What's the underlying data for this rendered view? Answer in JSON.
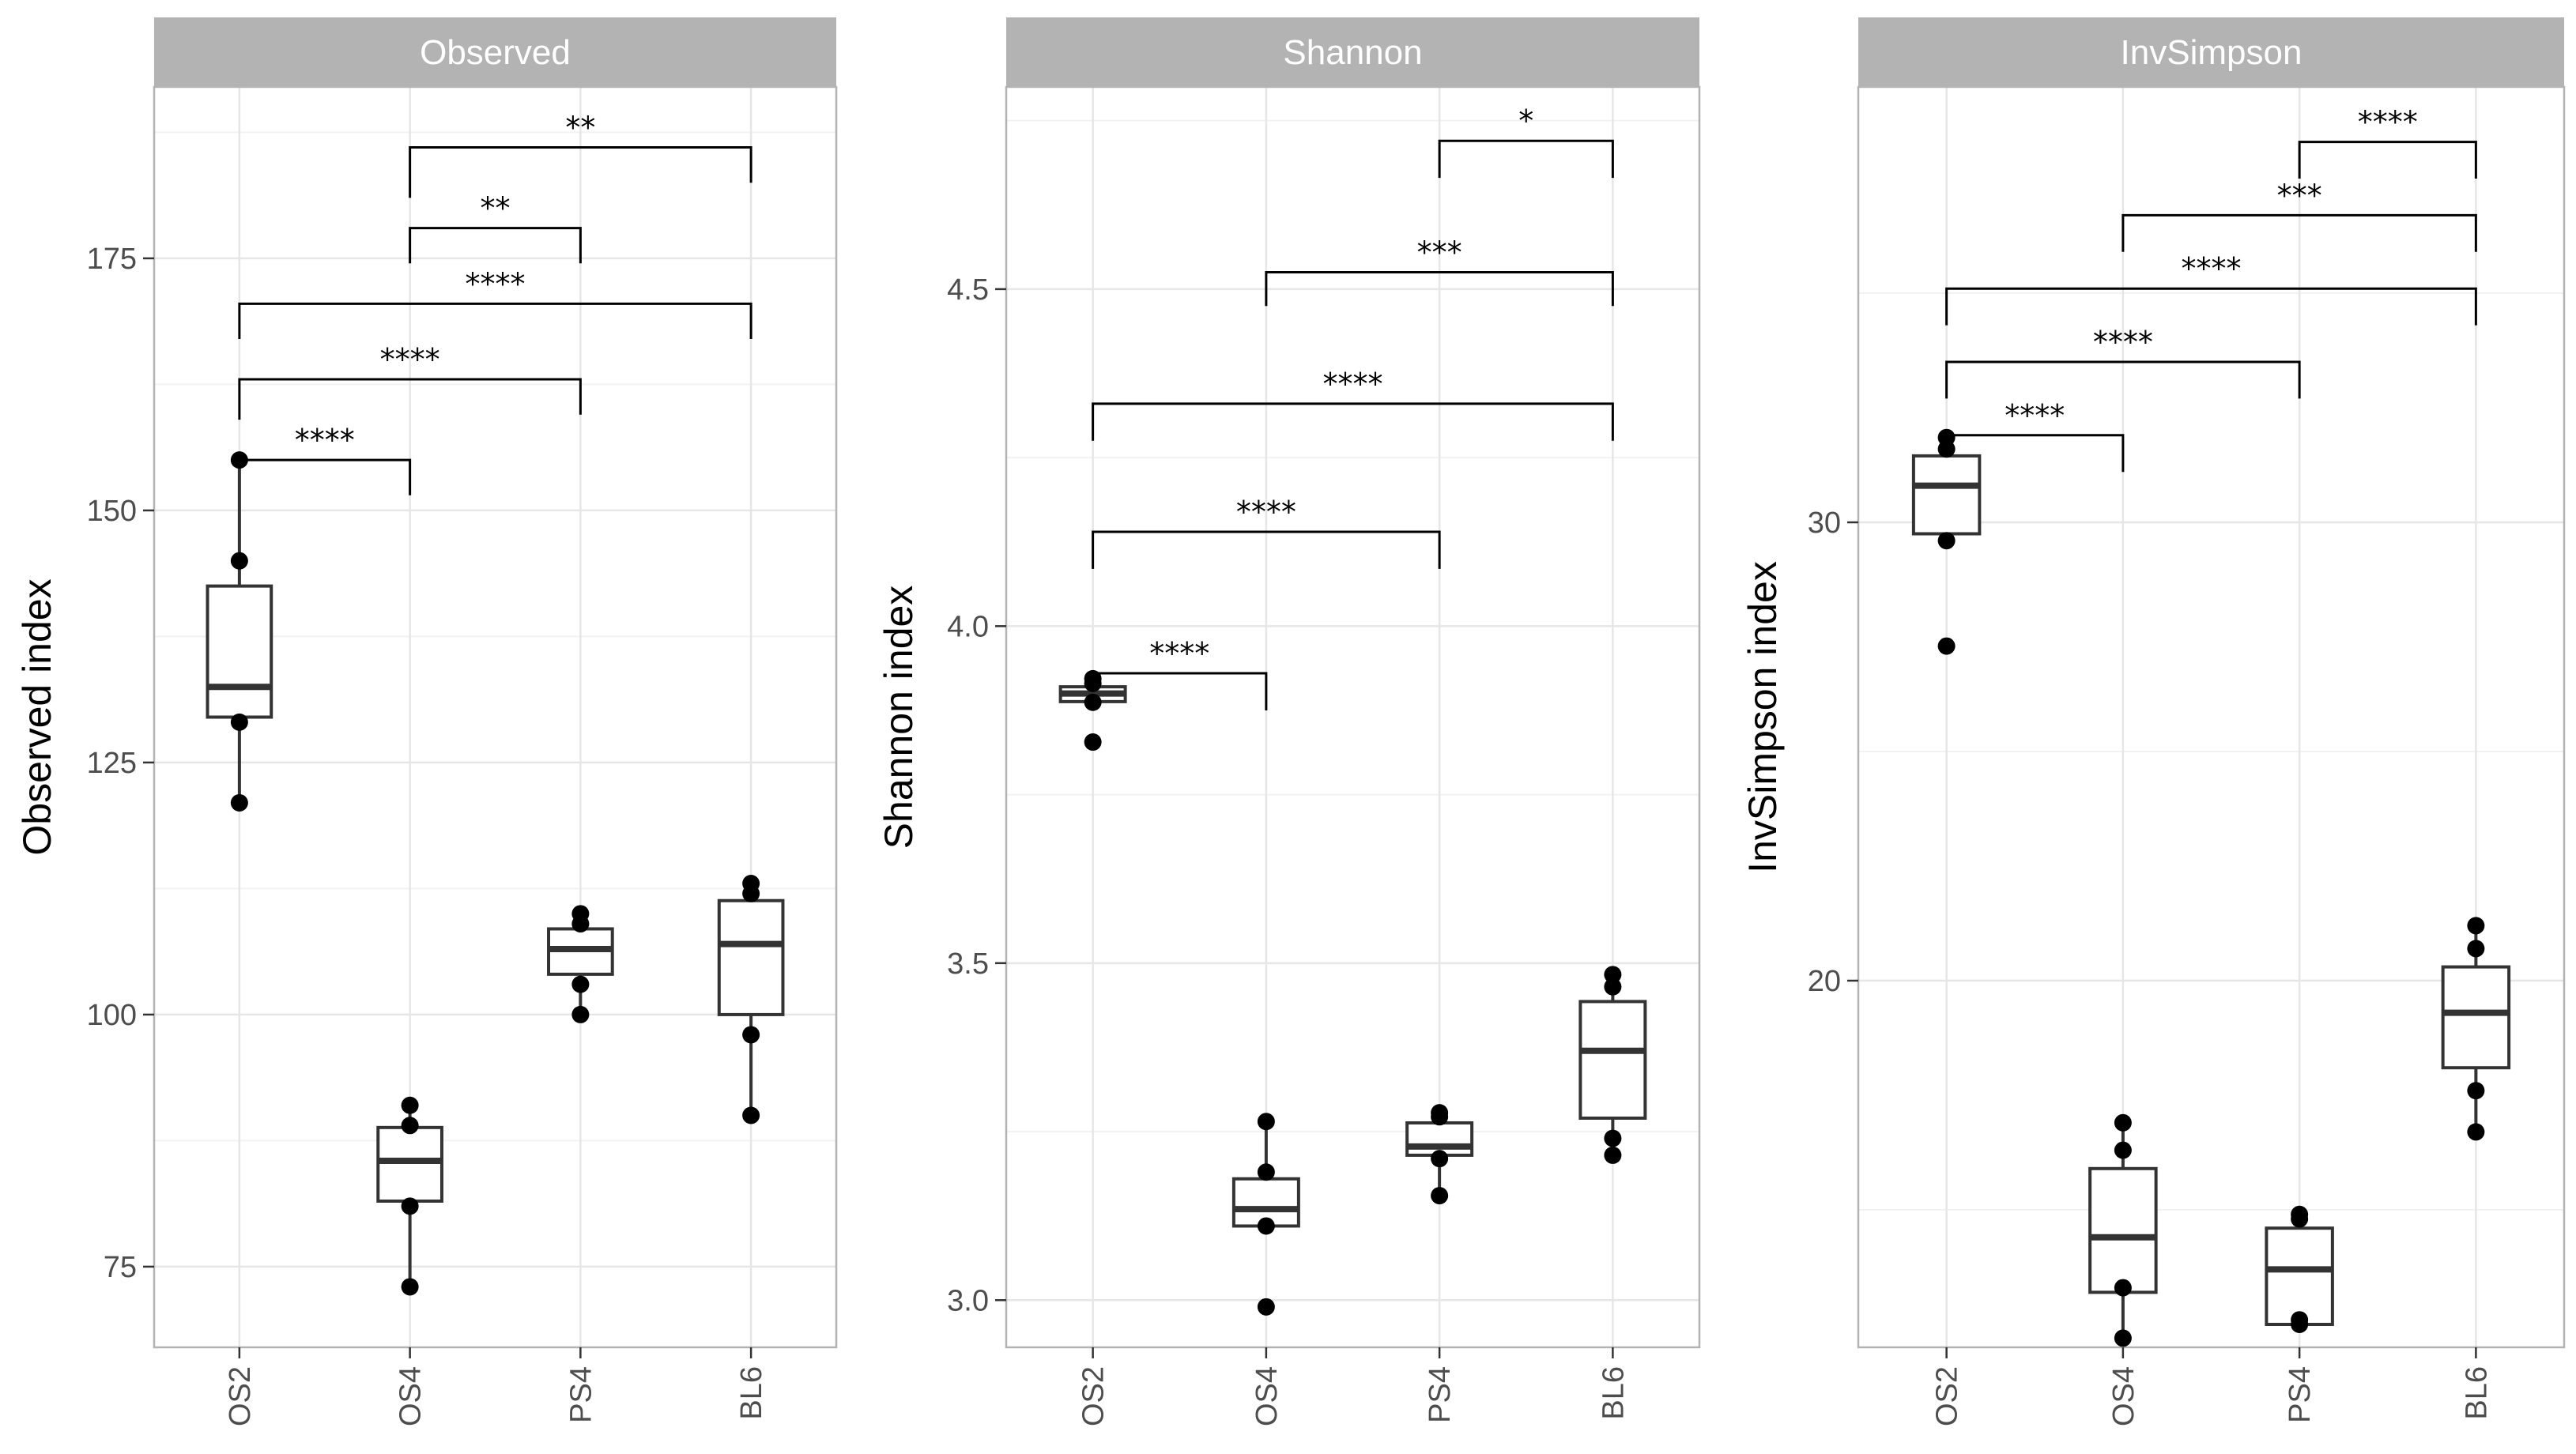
{
  "chart_data": [
    {
      "type": "box",
      "title": "Observed",
      "ylabel": "Observed index",
      "categories": [
        "OS2",
        "OS4",
        "PS4",
        "BL6"
      ],
      "ylim": [
        67,
        192
      ],
      "yticks": [
        75,
        100,
        125,
        150,
        175
      ],
      "boxes": [
        {
          "category": "OS2",
          "q1": 129.5,
          "median": 132.5,
          "q3": 142.5,
          "whisker_low": 121,
          "whisker_high": 155
        },
        {
          "category": "OS4",
          "q1": 81.5,
          "median": 85.5,
          "q3": 88.8,
          "whisker_low": 73,
          "whisker_high": 91
        },
        {
          "category": "PS4",
          "q1": 104,
          "median": 106.5,
          "q3": 108.5,
          "whisker_low": 100,
          "whisker_high": 110
        },
        {
          "category": "BL6",
          "q1": 100,
          "median": 107,
          "q3": 111.3,
          "whisker_low": 90,
          "whisker_high": 113
        }
      ],
      "points": [
        {
          "category": "OS2",
          "values": [
            155,
            145,
            129,
            121
          ]
        },
        {
          "category": "OS4",
          "values": [
            91,
            89,
            81,
            73
          ]
        },
        {
          "category": "PS4",
          "values": [
            110,
            109,
            103,
            100
          ]
        },
        {
          "category": "BL6",
          "values": [
            113,
            112,
            98,
            90
          ]
        }
      ],
      "comparisons": [
        {
          "from": "OS4",
          "to": "BL6",
          "label": "**",
          "y": 186,
          "left_end": 181,
          "right_end": 182.5
        },
        {
          "from": "OS4",
          "to": "PS4",
          "label": "**",
          "y": 178,
          "left_end": 174.5,
          "right_end": 174.5
        },
        {
          "from": "OS2",
          "to": "BL6",
          "label": "****",
          "y": 170.5,
          "left_end": 167,
          "right_end": 167
        },
        {
          "from": "OS2",
          "to": "PS4",
          "label": "****",
          "y": 163,
          "left_end": 159,
          "right_end": 159.5
        },
        {
          "from": "OS2",
          "to": "OS4",
          "label": "****",
          "y": 155,
          "left_end": 155,
          "right_end": 151.5
        }
      ]
    },
    {
      "type": "box",
      "title": "Shannon",
      "ylabel": "Shannon index",
      "categories": [
        "OS2",
        "OS4",
        "PS4",
        "BL6"
      ],
      "ylim": [
        2.93,
        4.8
      ],
      "yticks": [
        3.0,
        3.5,
        4.0,
        4.5
      ],
      "ytick_labels": [
        "3.0",
        "3.5",
        "4.0",
        "4.5"
      ],
      "boxes": [
        {
          "category": "OS2",
          "q1": 3.888,
          "median": 3.9,
          "q3": 3.91,
          "whisker_low": 3.888,
          "whisker_high": 3.92
        },
        {
          "category": "OS4",
          "q1": 3.11,
          "median": 3.135,
          "q3": 3.18,
          "whisker_low": 3.11,
          "whisker_high": 3.265
        },
        {
          "category": "PS4",
          "q1": 3.215,
          "median": 3.228,
          "q3": 3.263,
          "whisker_low": 3.155,
          "whisker_high": 3.275
        },
        {
          "category": "BL6",
          "q1": 3.27,
          "median": 3.37,
          "q3": 3.443,
          "whisker_low": 3.215,
          "whisker_high": 3.483
        }
      ],
      "points": [
        {
          "category": "OS2",
          "values": [
            3.922,
            3.915,
            3.887,
            3.828
          ]
        },
        {
          "category": "OS4",
          "values": [
            3.265,
            3.19,
            3.11,
            2.99
          ]
        },
        {
          "category": "PS4",
          "values": [
            3.278,
            3.272,
            3.21,
            3.155
          ]
        },
        {
          "category": "BL6",
          "values": [
            3.483,
            3.465,
            3.24,
            3.215
          ]
        }
      ],
      "comparisons": [
        {
          "from": "PS4",
          "to": "BL6",
          "label": "*",
          "y": 4.72,
          "left_end": 4.665,
          "right_end": 4.665
        },
        {
          "from": "OS4",
          "to": "BL6",
          "label": "***",
          "y": 4.525,
          "left_end": 4.475,
          "right_end": 4.475
        },
        {
          "from": "OS2",
          "to": "BL6",
          "label": "****",
          "y": 4.33,
          "left_end": 4.275,
          "right_end": 4.275
        },
        {
          "from": "OS2",
          "to": "PS4",
          "label": "****",
          "y": 4.14,
          "left_end": 4.085,
          "right_end": 4.085
        },
        {
          "from": "OS2",
          "to": "OS4",
          "label": "****",
          "y": 3.93,
          "left_end": 3.93,
          "right_end": 3.875
        }
      ]
    },
    {
      "type": "box",
      "title": "InvSimpson",
      "ylabel": "InvSimpson index",
      "categories": [
        "OS2",
        "OS4",
        "PS4",
        "BL6"
      ],
      "ylim": [
        12,
        39.5
      ],
      "yticks": [
        20,
        30
      ],
      "boxes": [
        {
          "category": "OS2",
          "q1": 29.75,
          "median": 30.8,
          "q3": 31.45,
          "whisker_low": 29.6,
          "whisker_high": 31.85
        },
        {
          "category": "OS4",
          "q1": 13.2,
          "median": 14.4,
          "q3": 15.9,
          "whisker_low": 12.2,
          "whisker_high": 16.9
        },
        {
          "category": "PS4",
          "q1": 12.5,
          "median": 13.7,
          "q3": 14.6,
          "whisker_low": 12.5,
          "whisker_high": 14.9
        },
        {
          "category": "BL6",
          "q1": 18.1,
          "median": 19.3,
          "q3": 20.3,
          "whisker_low": 16.7,
          "whisker_high": 21.2
        }
      ],
      "points": [
        {
          "category": "OS2",
          "values": [
            31.85,
            31.6,
            29.6,
            27.3
          ]
        },
        {
          "category": "OS4",
          "values": [
            16.9,
            16.3,
            13.3,
            12.2
          ]
        },
        {
          "category": "PS4",
          "values": [
            14.9,
            14.8,
            12.6,
            12.5
          ]
        },
        {
          "category": "BL6",
          "values": [
            21.2,
            20.7,
            17.6,
            16.7
          ]
        }
      ],
      "comparisons": [
        {
          "from": "PS4",
          "to": "BL6",
          "label": "****",
          "y": 38.3,
          "left_end": 37.5,
          "right_end": 37.5
        },
        {
          "from": "OS4",
          "to": "BL6",
          "label": "***",
          "y": 36.7,
          "left_end": 35.9,
          "right_end": 35.9
        },
        {
          "from": "OS2",
          "to": "BL6",
          "label": "****",
          "y": 35.1,
          "left_end": 34.3,
          "right_end": 34.3
        },
        {
          "from": "OS2",
          "to": "PS4",
          "label": "****",
          "y": 33.5,
          "left_end": 32.7,
          "right_end": 32.7
        },
        {
          "from": "OS2",
          "to": "OS4",
          "label": "****",
          "y": 31.9,
          "left_end": 31.9,
          "right_end": 31.1
        }
      ]
    }
  ],
  "style": {
    "strip_fill": "#b3b3b3",
    "strip_text": "#ffffff",
    "grid_major": "#e6e6e6",
    "grid_minor": "#f2f2f2",
    "panel_border": "#b3b3b3",
    "box_stroke": "#333333",
    "point_fill": "#000000"
  }
}
